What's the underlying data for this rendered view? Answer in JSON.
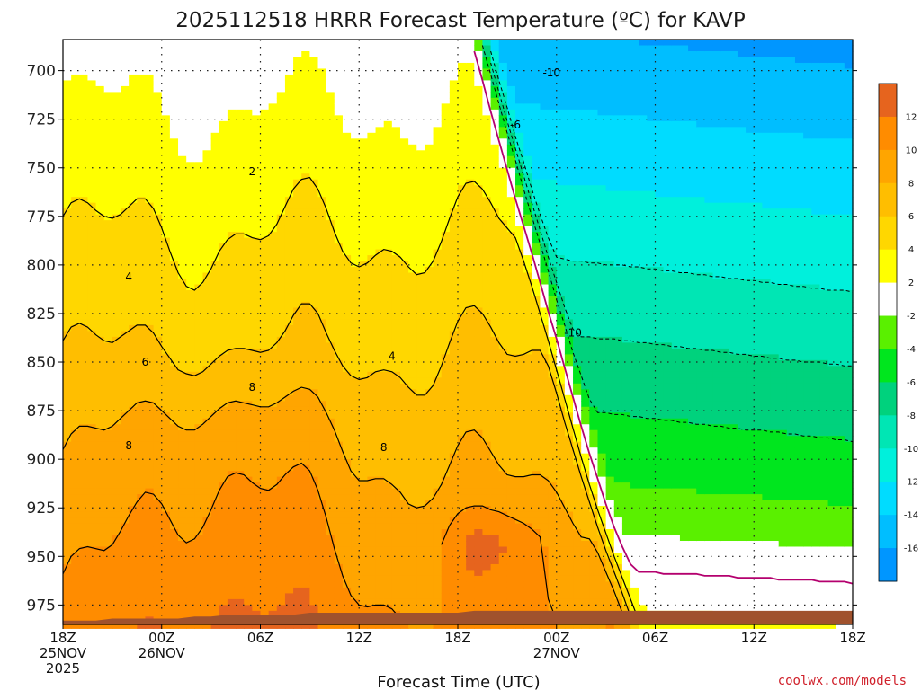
{
  "chart_data": {
    "type": "heatmap",
    "title": "2025112518 HRRR Forecast Temperature (ºC) for KAVP",
    "xlabel": "Forecast Time (UTC)",
    "credit": "coolwx.com/models",
    "y_axis": {
      "unit": "hPa",
      "inverted": true,
      "ticks": [
        700,
        725,
        750,
        775,
        800,
        825,
        850,
        875,
        900,
        925,
        950,
        975
      ],
      "range": [
        684,
        985
      ]
    },
    "x_axis": {
      "range_hours": [
        0,
        48
      ],
      "ticks": [
        {
          "hour": 0,
          "lines": [
            "18Z",
            "25NOV",
            "2025"
          ]
        },
        {
          "hour": 6,
          "lines": [
            "00Z",
            "26NOV"
          ]
        },
        {
          "hour": 12,
          "lines": [
            "06Z"
          ]
        },
        {
          "hour": 18,
          "lines": [
            "12Z"
          ]
        },
        {
          "hour": 24,
          "lines": [
            "18Z"
          ]
        },
        {
          "hour": 30,
          "lines": [
            "00Z",
            "27NOV"
          ]
        },
        {
          "hour": 36,
          "lines": [
            "06Z"
          ]
        },
        {
          "hour": 42,
          "lines": [
            "12Z"
          ]
        },
        {
          "hour": 48,
          "lines": [
            "18Z"
          ]
        }
      ]
    },
    "grid": true,
    "colorbar": {
      "labels": [
        "12",
        "10",
        "8",
        "6",
        "4",
        "2",
        "-2",
        "-4",
        "-6",
        "-8",
        "-10",
        "-12",
        "-14",
        "-16"
      ],
      "bins": [
        {
          "lo": 12,
          "hi": 14,
          "color": "#e6641e"
        },
        {
          "lo": 10,
          "hi": 12,
          "color": "#ff8c00"
        },
        {
          "lo": 8,
          "hi": 10,
          "color": "#ffa500"
        },
        {
          "lo": 6,
          "hi": 8,
          "color": "#ffbe00"
        },
        {
          "lo": 4,
          "hi": 6,
          "color": "#ffd700"
        },
        {
          "lo": 2,
          "hi": 4,
          "color": "#ffff00"
        },
        {
          "lo": -2,
          "hi": 2,
          "color": "#ffffff"
        },
        {
          "lo": -4,
          "hi": -2,
          "color": "#5af000"
        },
        {
          "lo": -6,
          "hi": -4,
          "color": "#00e61e"
        },
        {
          "lo": -8,
          "hi": -6,
          "color": "#00d27d"
        },
        {
          "lo": -10,
          "hi": -8,
          "color": "#00e6b4"
        },
        {
          "lo": -12,
          "hi": -10,
          "color": "#00f0dc"
        },
        {
          "lo": -14,
          "hi": -12,
          "color": "#00dcff"
        },
        {
          "lo": -16,
          "hi": -14,
          "color": "#00beff"
        },
        {
          "lo": -18,
          "hi": -16,
          "color": "#0096ff"
        }
      ]
    },
    "freezing_line_color": "#b4006e",
    "ground_color": "#a0522d",
    "ground_pressure": [
      983,
      983,
      983,
      982,
      982,
      982,
      982,
      982,
      981,
      981,
      980,
      980,
      980,
      980,
      980,
      979,
      979,
      979,
      979,
      979,
      979,
      979,
      979,
      979,
      979,
      978,
      978,
      978,
      978,
      978,
      978,
      978,
      978,
      978,
      978,
      978,
      978,
      978,
      978,
      978,
      978,
      978,
      978,
      978,
      978,
      978,
      978,
      978,
      978
    ],
    "contour_labels": [
      {
        "value": 2,
        "text": "2"
      },
      {
        "value": 4,
        "text": "4"
      },
      {
        "value": 4,
        "text": "4"
      },
      {
        "value": 6,
        "text": "6"
      },
      {
        "value": 8,
        "text": "8"
      },
      {
        "value": 8,
        "text": "8"
      },
      {
        "value": 8,
        "text": "8"
      },
      {
        "value": -6,
        "text": "-6"
      },
      {
        "value": -10,
        "text": "-10"
      },
      {
        "value": -10,
        "text": "-10"
      }
    ]
  }
}
